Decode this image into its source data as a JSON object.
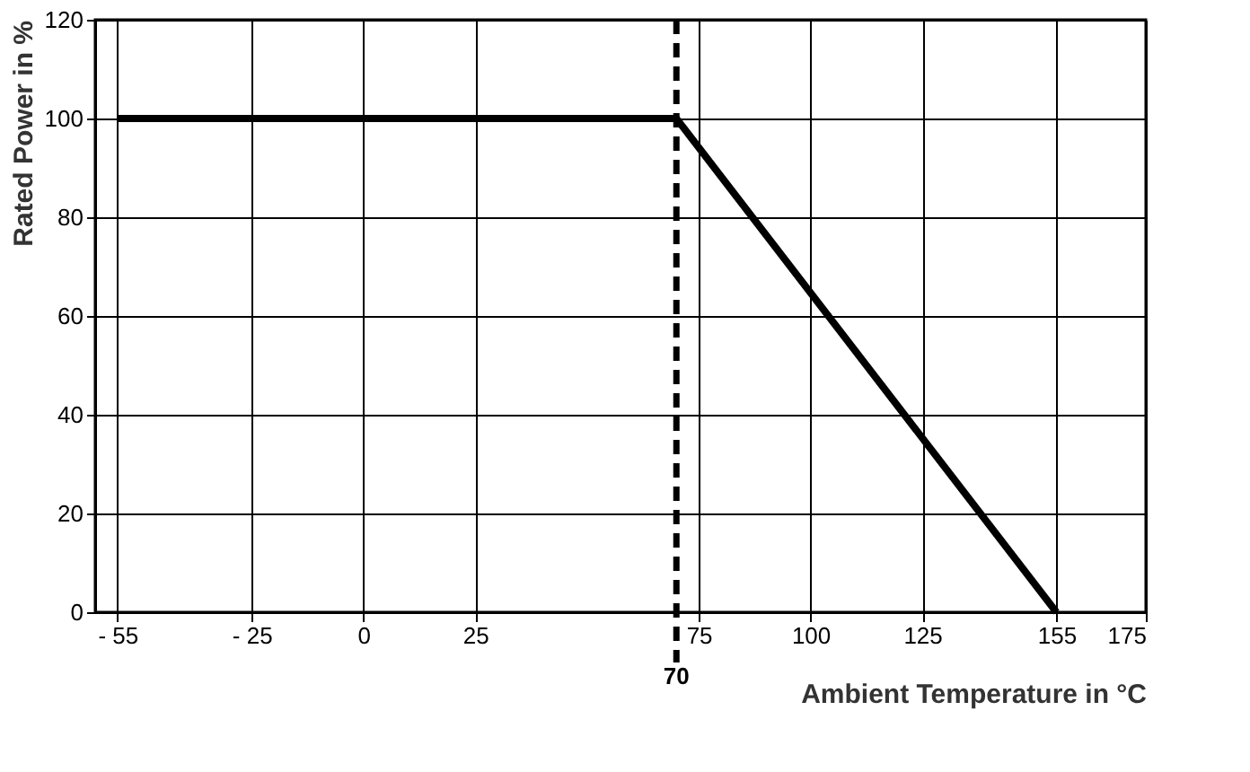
{
  "chart_data": {
    "type": "line",
    "xlabel": "Ambient Temperature in °C",
    "ylabel": "Rated Power in %",
    "x": [
      -55,
      70,
      155
    ],
    "values": [
      100,
      100,
      0
    ],
    "color": "#000000",
    "xlim": [
      -60,
      175
    ],
    "xticks": [
      {
        "value": -55,
        "label": "- 55"
      },
      {
        "value": -25,
        "label": "- 25"
      },
      0,
      25,
      75,
      100,
      125,
      155,
      175
    ],
    "ylim": [
      0,
      120
    ],
    "yticks": [
      0,
      20,
      40,
      60,
      80,
      100,
      120
    ],
    "grid": true,
    "ref_lines": [
      {
        "axis": "x",
        "value": 70,
        "label": "70",
        "color": "#000000",
        "line_style": "dashed"
      }
    ]
  }
}
